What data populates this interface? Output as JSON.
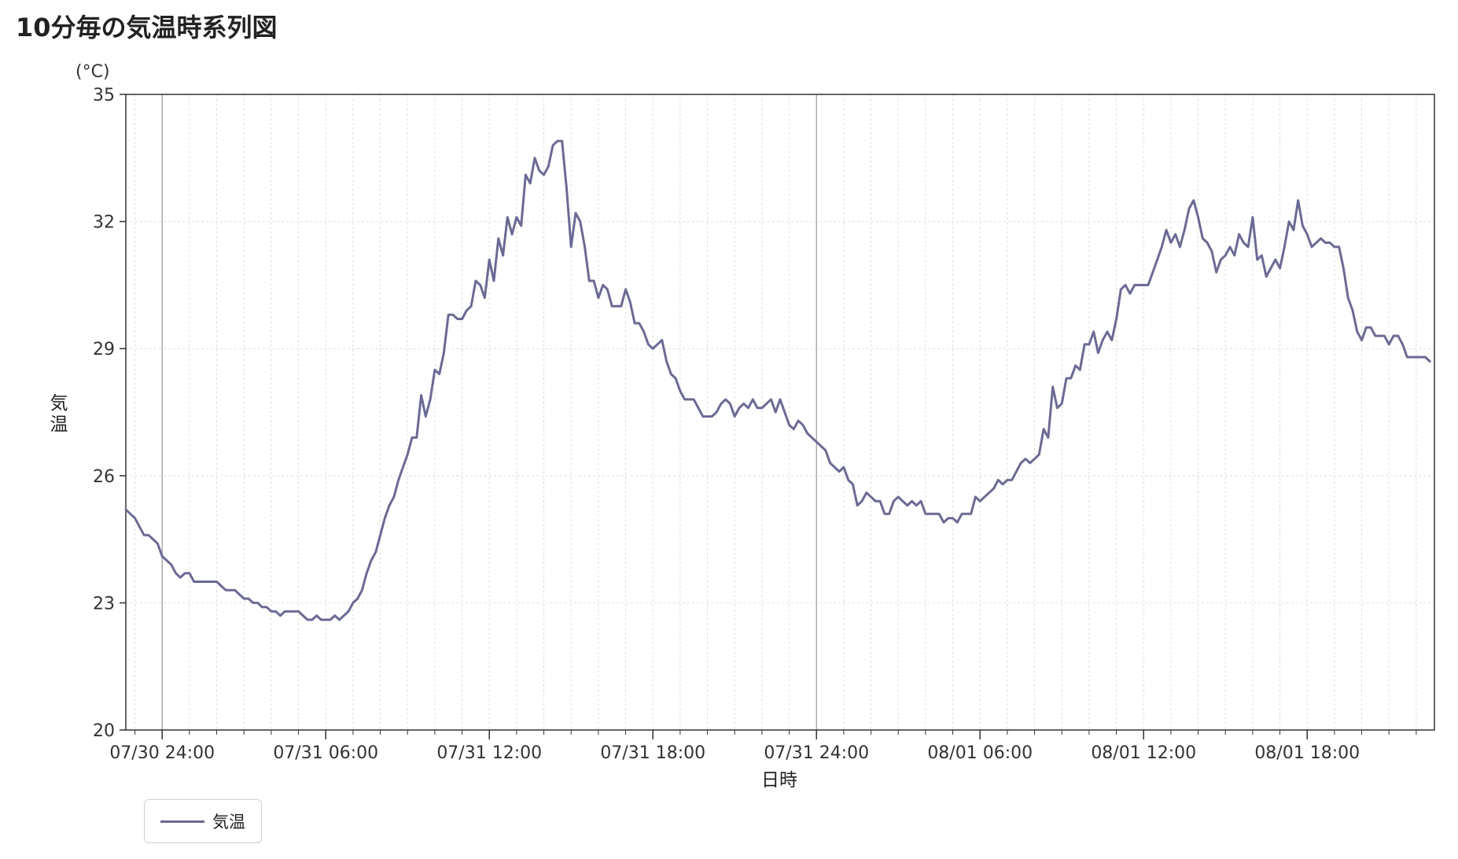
{
  "page": {
    "title": "10分毎の気温時系列図"
  },
  "chart_data": {
    "type": "line",
    "title": "10分毎の気温時系列図",
    "xlabel": "日時",
    "ylabel": "気温",
    "yunit": "(°C)",
    "ylim": [
      20,
      35
    ],
    "yticks": [
      20,
      23,
      26,
      29,
      32,
      35
    ],
    "xlim": [
      "07/30 22:40",
      "08/01 22:40"
    ],
    "xticks": [
      "07/30 24:00",
      "07/31 06:00",
      "07/31 12:00",
      "07/31 18:00",
      "07/31 24:00",
      "08/01 06:00",
      "08/01 12:00",
      "08/01 18:00"
    ],
    "grid": true,
    "legend_position": "bottom-left",
    "interval_minutes": 10,
    "colors": {
      "line": "#6b6a94",
      "grid": "#dddddd",
      "axis": "#333333",
      "day_divider": "#999999"
    },
    "series": [
      {
        "name": "気温",
        "values": [
          25.2,
          25.1,
          25.0,
          24.8,
          24.6,
          24.6,
          24.5,
          24.4,
          24.1,
          24.0,
          23.9,
          23.7,
          23.6,
          23.7,
          23.7,
          23.5,
          23.5,
          23.5,
          23.5,
          23.5,
          23.5,
          23.4,
          23.3,
          23.3,
          23.3,
          23.2,
          23.1,
          23.1,
          23.0,
          23.0,
          22.9,
          22.9,
          22.8,
          22.8,
          22.7,
          22.8,
          22.8,
          22.8,
          22.8,
          22.7,
          22.6,
          22.6,
          22.7,
          22.6,
          22.6,
          22.6,
          22.7,
          22.6,
          22.7,
          22.8,
          23.0,
          23.1,
          23.3,
          23.7,
          24.0,
          24.2,
          24.6,
          25.0,
          25.3,
          25.5,
          25.9,
          26.2,
          26.5,
          26.9,
          26.9,
          27.9,
          27.4,
          27.8,
          28.5,
          28.4,
          28.9,
          29.8,
          29.8,
          29.7,
          29.7,
          29.9,
          30.0,
          30.6,
          30.5,
          30.2,
          31.1,
          30.6,
          31.6,
          31.2,
          32.1,
          31.7,
          32.1,
          31.9,
          33.1,
          32.9,
          33.5,
          33.2,
          33.1,
          33.3,
          33.8,
          33.9,
          33.9,
          32.8,
          31.4,
          32.2,
          32.0,
          31.4,
          30.6,
          30.6,
          30.2,
          30.5,
          30.4,
          30.0,
          30.0,
          30.0,
          30.4,
          30.1,
          29.6,
          29.6,
          29.4,
          29.1,
          29.0,
          29.1,
          29.2,
          28.7,
          28.4,
          28.3,
          28.0,
          27.8,
          27.8,
          27.8,
          27.6,
          27.4,
          27.4,
          27.4,
          27.5,
          27.7,
          27.8,
          27.7,
          27.4,
          27.6,
          27.7,
          27.6,
          27.8,
          27.6,
          27.6,
          27.7,
          27.8,
          27.5,
          27.8,
          27.5,
          27.2,
          27.1,
          27.3,
          27.2,
          27.0,
          26.9,
          26.8,
          26.7,
          26.6,
          26.3,
          26.2,
          26.1,
          26.2,
          25.9,
          25.8,
          25.3,
          25.4,
          25.6,
          25.5,
          25.4,
          25.4,
          25.1,
          25.1,
          25.4,
          25.5,
          25.4,
          25.3,
          25.4,
          25.3,
          25.4,
          25.1,
          25.1,
          25.1,
          25.1,
          24.9,
          25.0,
          25.0,
          24.9,
          25.1,
          25.1,
          25.1,
          25.5,
          25.4,
          25.5,
          25.6,
          25.7,
          25.9,
          25.8,
          25.9,
          25.9,
          26.1,
          26.3,
          26.4,
          26.3,
          26.4,
          26.5,
          27.1,
          26.9,
          28.1,
          27.6,
          27.7,
          28.3,
          28.3,
          28.6,
          28.5,
          29.1,
          29.1,
          29.4,
          28.9,
          29.2,
          29.4,
          29.2,
          29.7,
          30.4,
          30.5,
          30.3,
          30.5,
          30.5,
          30.5,
          30.5,
          30.8,
          31.1,
          31.4,
          31.8,
          31.5,
          31.7,
          31.4,
          31.8,
          32.3,
          32.5,
          32.1,
          31.6,
          31.5,
          31.3,
          30.8,
          31.1,
          31.2,
          31.4,
          31.2,
          31.7,
          31.5,
          31.4,
          32.1,
          31.1,
          31.2,
          30.7,
          30.9,
          31.1,
          30.9,
          31.4,
          32.0,
          31.8,
          32.5,
          31.9,
          31.7,
          31.4,
          31.5,
          31.6,
          31.5,
          31.5,
          31.4,
          31.4,
          30.9,
          30.2,
          29.9,
          29.4,
          29.2,
          29.5,
          29.5,
          29.3,
          29.3,
          29.3,
          29.1,
          29.3,
          29.3,
          29.1,
          28.8,
          28.8,
          28.8,
          28.8,
          28.8,
          28.7
        ]
      }
    ]
  }
}
